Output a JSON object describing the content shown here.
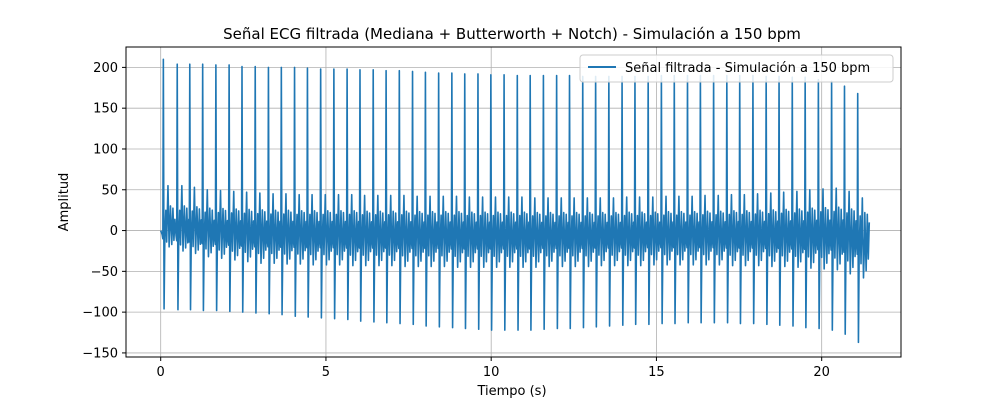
{
  "chart_data": {
    "type": "line",
    "title": "Señal ECG filtrada (Mediana + Butterworth + Notch) - Simulación a 150 bpm",
    "xlabel": "Tiempo (s)",
    "ylabel": "Amplitud",
    "xlim": [
      -1.05,
      22.4
    ],
    "ylim": [
      -155,
      225
    ],
    "xticks": [
      0,
      5,
      10,
      15,
      20
    ],
    "yticks": [
      -150,
      -100,
      -50,
      0,
      50,
      100,
      150,
      200
    ],
    "grid": true,
    "legend_position": "top-right",
    "colors": {
      "line": "#1f77b4",
      "grid": "#b0b0b0",
      "axes": "#000000"
    },
    "series": [
      {
        "name": "Señal filtrada - Simulación a 150 bpm",
        "duration": 21.3,
        "beat_period": 0.4,
        "beat_times": [
          0.08,
          0.5,
          0.88,
          1.27,
          1.67,
          2.07,
          2.46,
          2.86,
          3.26,
          3.65,
          4.05,
          4.44,
          4.84,
          5.24,
          5.64,
          6.03,
          6.43,
          6.82,
          7.22,
          7.62,
          8.01,
          8.41,
          8.81,
          9.2,
          9.6,
          9.99,
          10.39,
          10.79,
          11.18,
          11.58,
          11.98,
          12.37,
          12.77,
          13.16,
          13.56,
          13.96,
          14.35,
          14.75,
          15.15,
          15.54,
          15.94,
          16.33,
          16.73,
          17.13,
          17.52,
          17.92,
          18.32,
          18.71,
          19.11,
          19.5,
          19.9,
          20.3,
          20.69,
          21.09
        ],
        "r_peak_values": [
          210,
          204,
          204,
          204,
          203,
          203,
          201,
          201,
          200,
          200,
          200,
          199,
          198,
          198,
          198,
          197,
          197,
          196,
          196,
          195,
          194,
          193,
          193,
          192,
          192,
          191,
          191,
          190,
          190,
          190,
          190,
          190,
          189,
          189,
          189,
          189,
          189,
          189,
          190,
          190,
          190,
          190,
          190,
          190,
          190,
          190,
          189,
          189,
          188,
          188,
          185,
          183,
          177,
          168
        ],
        "s_trough_values": [
          -96,
          -97,
          -97,
          -98,
          -98,
          -99,
          -100,
          -101,
          -102,
          -103,
          -105,
          -106,
          -107,
          -108,
          -109,
          -111,
          -112,
          -113,
          -114,
          -115,
          -117,
          -118,
          -119,
          -120,
          -121,
          -122,
          -122,
          -122,
          -122,
          -121,
          -120,
          -120,
          -119,
          -118,
          -117,
          -116,
          -115,
          -115,
          -114,
          -114,
          -113,
          -113,
          -113,
          -113,
          -114,
          -114,
          -115,
          -116,
          -117,
          -119,
          -120,
          -122,
          -127,
          -137
        ],
        "t_wave_values": [
          55,
          55,
          53,
          50,
          49,
          48,
          47,
          46,
          45,
          45,
          44,
          44,
          44,
          44,
          44,
          43,
          43,
          43,
          43,
          42,
          42,
          42,
          42,
          41,
          41,
          41,
          41,
          41,
          40,
          40,
          40,
          40,
          40,
          40,
          40,
          41,
          41,
          41,
          42,
          42,
          42,
          43,
          43,
          44,
          44,
          45,
          46,
          47,
          48,
          50,
          51,
          52,
          48,
          40
        ],
        "trough_values": [
          -20,
          -25,
          -28,
          -32,
          -34,
          -36,
          -38,
          -40,
          -40,
          -41,
          -41,
          -42,
          -42,
          -42,
          -43,
          -43,
          -43,
          -43,
          -44,
          -44,
          -44,
          -44,
          -45,
          -45,
          -45,
          -45,
          -45,
          -45,
          -45,
          -44,
          -44,
          -44,
          -44,
          -43,
          -43,
          -43,
          -43,
          -42,
          -42,
          -42,
          -42,
          -42,
          -42,
          -43,
          -43,
          -43,
          -44,
          -44,
          -45,
          -46,
          -47,
          -48,
          -53,
          -58
        ],
        "end_value": -7
      }
    ]
  }
}
